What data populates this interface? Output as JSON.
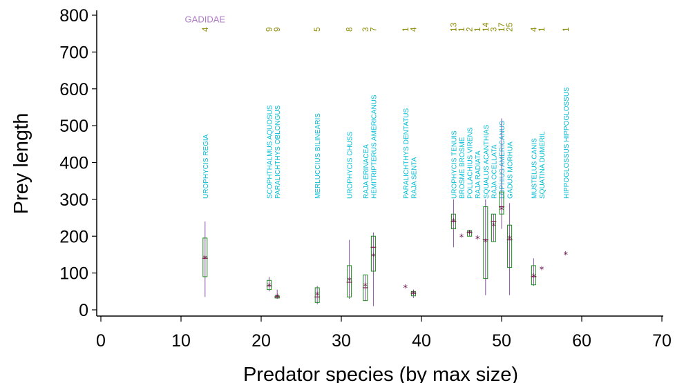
{
  "chart_data": {
    "type": "box",
    "xlabel": "Predator species (by max size)",
    "ylabel": "Prey length",
    "xlim": [
      0,
      70
    ],
    "ylim": [
      0,
      800
    ],
    "xticks": [
      "0",
      "10",
      "20",
      "30",
      "40",
      "50",
      "60",
      "70"
    ],
    "yticks": [
      "0",
      "100",
      "200",
      "300",
      "400",
      "500",
      "600",
      "700",
      "800"
    ],
    "grid": false,
    "family_label": {
      "text": "GADIDAE",
      "x": 13,
      "y": 790
    },
    "species": [
      {
        "x": 13,
        "name": "UROPHYCIS REGIA",
        "count": "4",
        "min": 35,
        "q1": 90,
        "median": 140,
        "q3": 195,
        "max": 240,
        "mean": 140
      },
      {
        "x": 21,
        "name": "SCOPHTHALMUS AQUOSUS",
        "count": "9",
        "min": 50,
        "q1": 55,
        "median": 65,
        "q3": 80,
        "max": 90,
        "mean": 65
      },
      {
        "x": 22,
        "name": "PARALICHTHYS OBLONGUS",
        "count": "9",
        "min": 30,
        "q1": 32,
        "median": 35,
        "q3": 38,
        "max": 55,
        "mean": 35
      },
      {
        "x": 27,
        "name": "MERLUCCIUS BILINEARIS",
        "count": "5",
        "min": 15,
        "q1": 20,
        "median": 35,
        "q3": 60,
        "max": 65,
        "mean": 40
      },
      {
        "x": 31,
        "name": "UROPHYCIS CHUSS",
        "count": "8",
        "min": 30,
        "q1": 35,
        "median": 75,
        "q3": 120,
        "max": 190,
        "mean": 80
      },
      {
        "x": 33,
        "name": "RAJA ERINACEA",
        "count": "3",
        "min": 25,
        "q1": 25,
        "median": 60,
        "q3": 95,
        "max": 95,
        "mean": 65
      },
      {
        "x": 34,
        "name": "HEMITRIPTERUS AMERICANUS",
        "count": "7",
        "min": 10,
        "q1": 105,
        "median": 170,
        "q3": 200,
        "max": 210,
        "mean": 145
      },
      {
        "x": 38,
        "name": "PARALICHTHYS DENTATUS",
        "count": "1",
        "min": 60,
        "q1": 60,
        "median": 60,
        "q3": 60,
        "max": 60,
        "mean": 60
      },
      {
        "x": 39,
        "name": "RAJA SENTA",
        "count": "4",
        "min": 32,
        "q1": 38,
        "median": 45,
        "q3": 50,
        "max": 55,
        "mean": 43
      },
      {
        "x": 44,
        "name": "UROPHYCIS TENUIS",
        "count": "13",
        "min": 170,
        "q1": 220,
        "median": 240,
        "q3": 260,
        "max": 300,
        "mean": 240
      },
      {
        "x": 45,
        "name": "BROSME BROSME",
        "count": "1",
        "min": 198,
        "q1": 198,
        "median": 198,
        "q3": 198,
        "max": 198,
        "mean": 198
      },
      {
        "x": 46,
        "name": "POLLACHIUS VIRENS",
        "count": "2",
        "min": 200,
        "q1": 200,
        "median": 210,
        "q3": 215,
        "max": 215,
        "mean": 208
      },
      {
        "x": 47,
        "name": "RAJA RADIATA",
        "count": "1",
        "min": 193,
        "q1": 193,
        "median": 193,
        "q3": 193,
        "max": 193,
        "mean": 193
      },
      {
        "x": 48,
        "name": "SQUALUS ACANTHIAS",
        "count": "14",
        "min": 40,
        "q1": 85,
        "median": 190,
        "q3": 280,
        "max": 300,
        "mean": 185
      },
      {
        "x": 49,
        "name": "RAJA OCELLATA",
        "count": "3",
        "min": 185,
        "q1": 185,
        "median": 240,
        "q3": 260,
        "max": 260,
        "mean": 228
      },
      {
        "x": 50,
        "name": "LOPHIUS AMERICANUS",
        "count": "17",
        "min": 220,
        "q1": 260,
        "median": 280,
        "q3": 320,
        "max": 520,
        "mean": 272
      },
      {
        "x": 51,
        "name": "GADUS MORHUA",
        "count": "25",
        "min": 40,
        "q1": 115,
        "median": 190,
        "q3": 230,
        "max": 290,
        "mean": 193
      },
      {
        "x": 54,
        "name": "MUSTELUS CANIS",
        "count": "4",
        "min": 65,
        "q1": 68,
        "median": 90,
        "q3": 120,
        "max": 140,
        "mean": 90
      },
      {
        "x": 55,
        "name": "SQUATINA DUMERIL",
        "count": "1",
        "min": 110,
        "q1": 110,
        "median": 110,
        "q3": 110,
        "max": 110,
        "mean": 110
      },
      {
        "x": 58,
        "name": "HIPPOGLOSSUS HIPPOGLOSSUS",
        "count": "1",
        "min": 150,
        "q1": 150,
        "median": 150,
        "q3": 150,
        "max": 150,
        "mean": 150
      }
    ]
  }
}
